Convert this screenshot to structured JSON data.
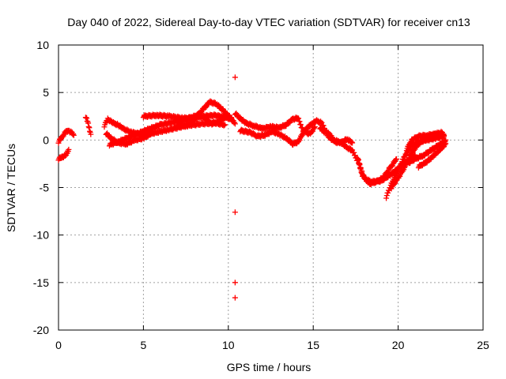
{
  "chart_data": {
    "type": "scatter",
    "title": "Day 040 of 2022, Sidereal Day-to-day VTEC variation (SDTVAR) for receiver cn13",
    "xlabel": "GPS time / hours",
    "ylabel": "SDTVAR / TECUs",
    "xlim": [
      0,
      25
    ],
    "ylim": [
      -20,
      10
    ],
    "xticks": [
      0,
      5,
      10,
      15,
      20,
      25
    ],
    "yticks": [
      -20,
      -15,
      -10,
      -5,
      0,
      5,
      10
    ],
    "grid": true,
    "marker": "+",
    "marker_color": "#ff0000",
    "series": [
      {
        "name": "SDTVAR",
        "outliers": [
          [
            10.4,
            6.6
          ],
          [
            10.4,
            -7.6
          ],
          [
            10.4,
            -15.0
          ],
          [
            10.4,
            -16.6
          ]
        ],
        "tracks": [
          [
            [
              0.0,
              -2.0
            ],
            [
              0.2,
              -1.8
            ],
            [
              0.45,
              -1.6
            ],
            [
              0.6,
              -1.0
            ]
          ],
          [
            [
              0.0,
              -0.2
            ],
            [
              0.2,
              0.3
            ],
            [
              0.4,
              0.8
            ],
            [
              0.6,
              1.0
            ],
            [
              0.8,
              0.7
            ],
            [
              0.9,
              0.5
            ]
          ],
          [
            [
              1.6,
              2.5
            ],
            [
              1.75,
              1.7
            ],
            [
              1.9,
              0.6
            ]
          ],
          [
            [
              2.7,
              1.5
            ],
            [
              2.9,
              2.2
            ],
            [
              3.2,
              1.8
            ],
            [
              3.5,
              1.6
            ],
            [
              3.8,
              1.2
            ],
            [
              4.3,
              0.8
            ],
            [
              4.9,
              0.6
            ],
            [
              5.5,
              0.9
            ]
          ],
          [
            [
              2.8,
              0.7
            ],
            [
              3.1,
              0.2
            ],
            [
              3.5,
              -0.3
            ],
            [
              4.0,
              -0.4
            ],
            [
              4.5,
              0.0
            ],
            [
              5.0,
              0.2
            ],
            [
              5.5,
              0.7
            ],
            [
              6.5,
              1.1
            ],
            [
              7.5,
              1.5
            ],
            [
              8.4,
              1.7
            ],
            [
              9.2,
              1.8
            ],
            [
              9.8,
              1.6
            ]
          ],
          [
            [
              3.0,
              -0.5
            ],
            [
              3.5,
              -0.2
            ],
            [
              4.3,
              0.4
            ],
            [
              5.1,
              1.0
            ],
            [
              6.0,
              1.6
            ],
            [
              6.8,
              1.9
            ],
            [
              7.5,
              2.2
            ],
            [
              8.2,
              2.6
            ],
            [
              8.6,
              3.4
            ],
            [
              8.9,
              4.0
            ],
            [
              9.3,
              3.8
            ],
            [
              9.7,
              3.1
            ],
            [
              10.2,
              2.2
            ]
          ],
          [
            [
              5.0,
              2.5
            ],
            [
              5.8,
              2.6
            ],
            [
              6.5,
              2.5
            ],
            [
              7.3,
              2.3
            ],
            [
              8.0,
              2.3
            ],
            [
              8.6,
              2.5
            ],
            [
              9.2,
              2.6
            ],
            [
              9.8,
              2.4
            ],
            [
              10.2,
              2.2
            ]
          ],
          [
            [
              7.0,
              1.6
            ],
            [
              7.6,
              1.6
            ],
            [
              8.0,
              2.0
            ],
            [
              8.2,
              2.8
            ],
            [
              8.6,
              2.3
            ],
            [
              9.0,
              1.7
            ],
            [
              9.5,
              2.0
            ],
            [
              10.0,
              2.6
            ],
            [
              10.4,
              1.7
            ]
          ],
          [
            [
              10.4,
              2.8
            ],
            [
              10.7,
              2.3
            ],
            [
              11.0,
              1.8
            ],
            [
              11.5,
              1.5
            ],
            [
              12.0,
              1.2
            ],
            [
              12.5,
              1.4
            ],
            [
              13.0,
              1.3
            ],
            [
              13.4,
              1.6
            ],
            [
              13.8,
              2.2
            ],
            [
              14.1,
              2.3
            ],
            [
              14.4,
              1.0
            ],
            [
              14.8,
              0.6
            ],
            [
              15.1,
              1.4
            ]
          ],
          [
            [
              10.7,
              1.0
            ],
            [
              11.3,
              0.8
            ],
            [
              11.7,
              0.4
            ],
            [
              12.1,
              0.5
            ],
            [
              12.6,
              0.9
            ],
            [
              13.0,
              0.6
            ],
            [
              13.4,
              0.2
            ],
            [
              13.8,
              -0.4
            ],
            [
              14.1,
              -0.2
            ],
            [
              14.5,
              1.0
            ],
            [
              14.9,
              1.7
            ],
            [
              15.2,
              2.0
            ],
            [
              15.5,
              1.8
            ],
            [
              15.7,
              1.0
            ],
            [
              16.0,
              0.5
            ],
            [
              16.3,
              -0.2
            ],
            [
              16.6,
              -0.3
            ],
            [
              17.0,
              0.1
            ],
            [
              17.3,
              -0.3
            ]
          ],
          [
            [
              15.4,
              1.3
            ],
            [
              15.8,
              0.6
            ],
            [
              16.1,
              0.0
            ],
            [
              16.6,
              -0.2
            ],
            [
              16.9,
              -0.7
            ],
            [
              17.3,
              -1.1
            ],
            [
              17.7,
              -2.5
            ],
            [
              17.9,
              -3.7
            ],
            [
              18.3,
              -4.6
            ],
            [
              18.7,
              -4.4
            ],
            [
              19.1,
              -4.0
            ],
            [
              19.5,
              -3.0
            ],
            [
              19.9,
              -2.0
            ]
          ],
          [
            [
              17.6,
              -1.8
            ],
            [
              17.8,
              -3.0
            ],
            [
              18.0,
              -4.0
            ],
            [
              18.4,
              -4.4
            ],
            [
              19.0,
              -4.3
            ],
            [
              19.5,
              -3.7
            ],
            [
              20.0,
              -3.0
            ],
            [
              20.6,
              -2.1
            ],
            [
              21.0,
              -1.6
            ]
          ],
          [
            [
              19.3,
              -6.0
            ],
            [
              19.6,
              -4.6
            ],
            [
              20.0,
              -3.2
            ],
            [
              20.4,
              -1.6
            ],
            [
              20.8,
              -0.6
            ],
            [
              21.2,
              -0.2
            ],
            [
              21.7,
              0.0
            ],
            [
              22.2,
              0.2
            ],
            [
              22.7,
              0.4
            ]
          ],
          [
            [
              19.6,
              -5.0
            ],
            [
              20.0,
              -4.0
            ],
            [
              20.4,
              -2.8
            ],
            [
              20.7,
              -1.6
            ],
            [
              21.1,
              -0.6
            ],
            [
              21.6,
              0.2
            ],
            [
              22.1,
              0.6
            ],
            [
              22.6,
              0.8
            ]
          ],
          [
            [
              20.2,
              -2.4
            ],
            [
              20.6,
              -2.4
            ],
            [
              21.0,
              -2.0
            ],
            [
              21.5,
              -1.6
            ],
            [
              22.0,
              -1.0
            ],
            [
              22.5,
              -0.4
            ],
            [
              22.8,
              0.0
            ]
          ],
          [
            [
              20.5,
              -1.0
            ],
            [
              20.8,
              0.0
            ],
            [
              21.2,
              0.4
            ],
            [
              21.7,
              0.5
            ],
            [
              22.2,
              0.6
            ],
            [
              22.7,
              0.5
            ]
          ],
          [
            [
              21.2,
              -2.8
            ],
            [
              21.6,
              -2.4
            ],
            [
              22.0,
              -1.8
            ],
            [
              22.4,
              -1.1
            ],
            [
              22.8,
              -0.4
            ]
          ]
        ]
      }
    ]
  }
}
